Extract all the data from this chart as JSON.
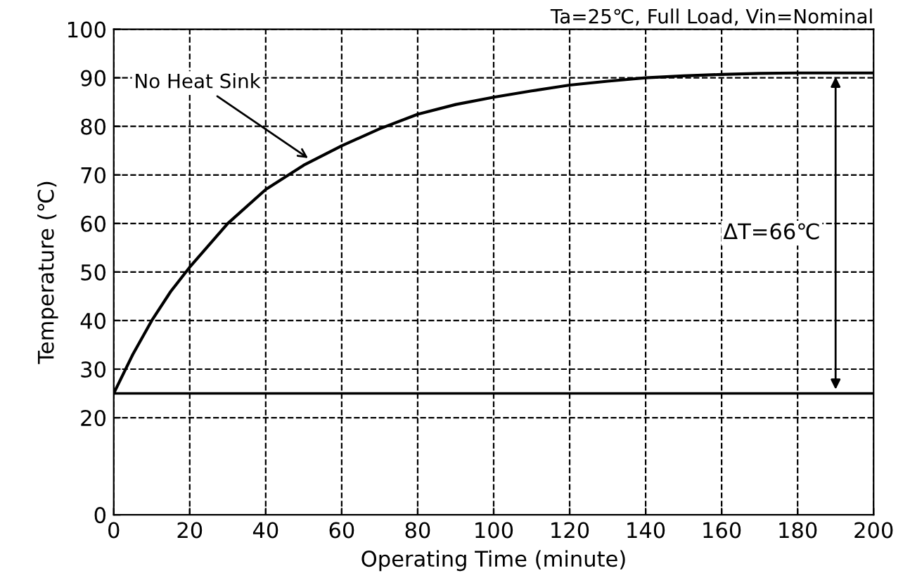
{
  "chart_data": {
    "type": "line",
    "title": "Ta=25℃, Full Load, Vin=Nominal",
    "xlabel": "Operating Time (minute)",
    "ylabel": "Temperature (℃)",
    "series": [
      {
        "color": "#000000",
        "x": [
          0,
          5,
          10,
          15,
          20,
          30,
          40,
          50,
          60,
          70,
          80,
          90,
          100,
          110,
          120,
          130,
          140,
          150,
          160,
          170,
          180,
          190,
          200
        ],
        "values": [
          25,
          33,
          40,
          46,
          51,
          60,
          67,
          72,
          76,
          79.5,
          82.5,
          84.5,
          86,
          87.3,
          88.5,
          89.3,
          90,
          90.4,
          90.7,
          90.9,
          91,
          91,
          91
        ]
      }
    ],
    "annotations": [
      {
        "text": "No Heat Sink",
        "x": 52,
        "y": 73
      },
      "ΔT=66℃"
    ],
    "ref_lines": [
      {
        "axis": "y",
        "value": 25,
        "color": "#000000",
        "line_style": "solid"
      }
    ],
    "xlim": [
      0,
      200
    ],
    "xticks": [
      0,
      20,
      40,
      60,
      80,
      100,
      120,
      140,
      160,
      180,
      200
    ],
    "ylim": [
      0,
      100
    ],
    "yticks": [
      0,
      20,
      30,
      40,
      50,
      60,
      70,
      80,
      90,
      100
    ],
    "grid": true,
    "line_style": "solid",
    "legend": false
  }
}
